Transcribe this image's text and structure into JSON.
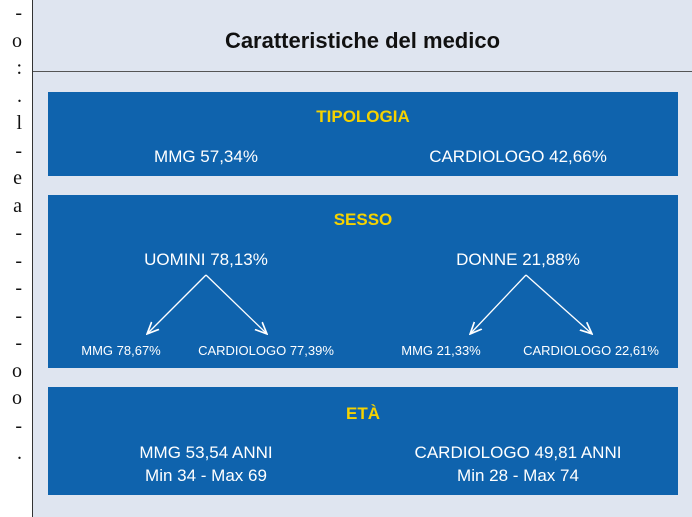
{
  "margin_fragments": [
    "-",
    "o",
    ":",
    ".",
    "l",
    "-",
    "e",
    "a",
    "-",
    "-",
    "-",
    "-",
    "-",
    "o",
    "o",
    "-",
    "."
  ],
  "title": "Caratteristiche del medico",
  "tipologia": {
    "heading": "TIPOLOGIA",
    "items": [
      "MMG 57,34%",
      "CARDIOLOGO 42,66%"
    ]
  },
  "sesso": {
    "heading": "SESSO",
    "groups": [
      {
        "label": "UOMINI 78,13%",
        "sub": [
          "MMG 78,67%",
          "CARDIOLOGO 77,39%"
        ]
      },
      {
        "label": "DONNE 21,88%",
        "sub": [
          "MMG 21,33%",
          "CARDIOLOGO 22,61%"
        ]
      }
    ]
  },
  "eta": {
    "heading": "ETÀ",
    "items": [
      {
        "label": "MMG 53,54 ANNI",
        "range": "Min 34 - Max 69"
      },
      {
        "label": "CARDIOLOGO 49,81 ANNI",
        "range": "Min 28 - Max 74"
      }
    ]
  }
}
